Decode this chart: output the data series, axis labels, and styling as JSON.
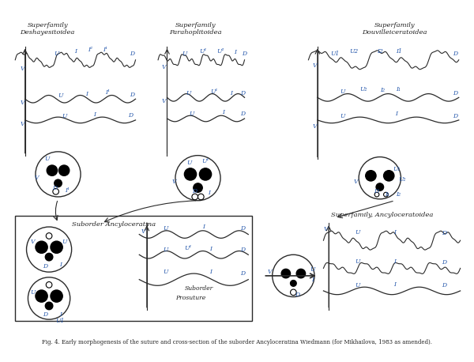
{
  "title": "Fig. 4. Early morphogenesis of the suture and cross-section of the suborder Ancyloceratina Wiedmann (for Mikhailova, 1983 as amended).",
  "superfamily1": "Superfamily\nDeshayesitoidea",
  "superfamily2": "Superfamily\nParahoplitoidea",
  "superfamily3": "Superfamily\nDouvilleiceratoidea",
  "superfamily4": "Superfamily, Ancyloceratoidea",
  "suborder1": "Suborder Ancyloceratina",
  "suborder2": "Suborder",
  "prosuture": "Prosuture",
  "bg_color": "#ffffff",
  "line_color": "#2a2a2a",
  "label_color": "#2255aa",
  "text_color": "#222222"
}
